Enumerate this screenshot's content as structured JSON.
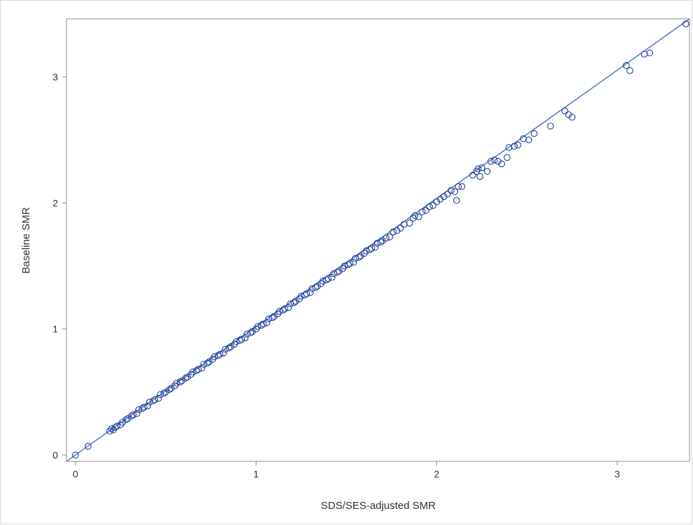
{
  "chart_data": {
    "type": "scatter",
    "title": "",
    "xlabel": "SDS/SES-adjusted SMR",
    "ylabel": "Baseline SMR",
    "xlim": [
      -0.05,
      3.4
    ],
    "ylim": [
      -0.05,
      3.46
    ],
    "x_ticks": [
      "0",
      "1",
      "2",
      "3"
    ],
    "y_ticks": [
      "0",
      "1",
      "2",
      "3"
    ],
    "grid": false,
    "legend": "none",
    "marker": "open-circle",
    "marker_color": "#1f3f99",
    "fit_line_color": "#5b7ec0",
    "fit_line": {
      "x": [
        -0.05,
        3.4
      ],
      "y": [
        -0.05,
        3.46
      ]
    },
    "points": [
      [
        0.0,
        0.0
      ],
      [
        0.07,
        0.07
      ],
      [
        0.19,
        0.19
      ],
      [
        0.2,
        0.21
      ],
      [
        0.21,
        0.2
      ],
      [
        0.22,
        0.22
      ],
      [
        0.23,
        0.23
      ],
      [
        0.25,
        0.24
      ],
      [
        0.26,
        0.26
      ],
      [
        0.28,
        0.28
      ],
      [
        0.29,
        0.29
      ],
      [
        0.31,
        0.31
      ],
      [
        0.32,
        0.32
      ],
      [
        0.34,
        0.33
      ],
      [
        0.35,
        0.36
      ],
      [
        0.37,
        0.37
      ],
      [
        0.38,
        0.38
      ],
      [
        0.4,
        0.39
      ],
      [
        0.41,
        0.42
      ],
      [
        0.43,
        0.43
      ],
      [
        0.44,
        0.44
      ],
      [
        0.46,
        0.45
      ],
      [
        0.47,
        0.48
      ],
      [
        0.49,
        0.49
      ],
      [
        0.5,
        0.5
      ],
      [
        0.52,
        0.52
      ],
      [
        0.53,
        0.53
      ],
      [
        0.55,
        0.55
      ],
      [
        0.56,
        0.57
      ],
      [
        0.58,
        0.58
      ],
      [
        0.59,
        0.59
      ],
      [
        0.61,
        0.61
      ],
      [
        0.62,
        0.62
      ],
      [
        0.64,
        0.64
      ],
      [
        0.65,
        0.66
      ],
      [
        0.67,
        0.67
      ],
      [
        0.68,
        0.68
      ],
      [
        0.7,
        0.69
      ],
      [
        0.71,
        0.72
      ],
      [
        0.73,
        0.73
      ],
      [
        0.74,
        0.74
      ],
      [
        0.76,
        0.76
      ],
      [
        0.77,
        0.78
      ],
      [
        0.79,
        0.79
      ],
      [
        0.8,
        0.8
      ],
      [
        0.82,
        0.81
      ],
      [
        0.83,
        0.84
      ],
      [
        0.85,
        0.85
      ],
      [
        0.86,
        0.86
      ],
      [
        0.88,
        0.88
      ],
      [
        0.89,
        0.9
      ],
      [
        0.91,
        0.91
      ],
      [
        0.92,
        0.92
      ],
      [
        0.94,
        0.93
      ],
      [
        0.95,
        0.96
      ],
      [
        0.97,
        0.97
      ],
      [
        0.98,
        0.98
      ],
      [
        1.0,
        1.0
      ],
      [
        1.01,
        1.02
      ],
      [
        1.03,
        1.03
      ],
      [
        1.04,
        1.04
      ],
      [
        1.06,
        1.05
      ],
      [
        1.07,
        1.08
      ],
      [
        1.09,
        1.09
      ],
      [
        1.1,
        1.1
      ],
      [
        1.12,
        1.12
      ],
      [
        1.13,
        1.14
      ],
      [
        1.15,
        1.15
      ],
      [
        1.16,
        1.16
      ],
      [
        1.18,
        1.17
      ],
      [
        1.19,
        1.2
      ],
      [
        1.21,
        1.21
      ],
      [
        1.22,
        1.22
      ],
      [
        1.24,
        1.24
      ],
      [
        1.25,
        1.26
      ],
      [
        1.27,
        1.27
      ],
      [
        1.28,
        1.28
      ],
      [
        1.3,
        1.29
      ],
      [
        1.31,
        1.32
      ],
      [
        1.33,
        1.33
      ],
      [
        1.34,
        1.34
      ],
      [
        1.36,
        1.36
      ],
      [
        1.37,
        1.38
      ],
      [
        1.39,
        1.39
      ],
      [
        1.4,
        1.4
      ],
      [
        1.42,
        1.41
      ],
      [
        1.43,
        1.44
      ],
      [
        1.45,
        1.45
      ],
      [
        1.46,
        1.46
      ],
      [
        1.48,
        1.48
      ],
      [
        1.49,
        1.5
      ],
      [
        1.51,
        1.51
      ],
      [
        1.52,
        1.52
      ],
      [
        1.54,
        1.53
      ],
      [
        1.55,
        1.56
      ],
      [
        1.57,
        1.57
      ],
      [
        1.58,
        1.58
      ],
      [
        1.6,
        1.6
      ],
      [
        1.61,
        1.62
      ],
      [
        1.63,
        1.63
      ],
      [
        1.64,
        1.64
      ],
      [
        1.66,
        1.65
      ],
      [
        1.67,
        1.68
      ],
      [
        1.69,
        1.69
      ],
      [
        1.7,
        1.7
      ],
      [
        1.72,
        1.72
      ],
      [
        1.74,
        1.73
      ],
      [
        1.76,
        1.77
      ],
      [
        1.78,
        1.78
      ],
      [
        1.8,
        1.8
      ],
      [
        1.82,
        1.83
      ],
      [
        1.85,
        1.84
      ],
      [
        1.87,
        1.88
      ],
      [
        1.88,
        1.9
      ],
      [
        1.9,
        1.89
      ],
      [
        1.92,
        1.93
      ],
      [
        1.94,
        1.94
      ],
      [
        1.96,
        1.97
      ],
      [
        1.98,
        1.98
      ],
      [
        2.0,
        2.01
      ],
      [
        2.02,
        2.03
      ],
      [
        2.04,
        2.05
      ],
      [
        2.06,
        2.07
      ],
      [
        2.08,
        2.1
      ],
      [
        2.1,
        2.09
      ],
      [
        2.11,
        2.02
      ],
      [
        2.12,
        2.13
      ],
      [
        2.14,
        2.13
      ],
      [
        2.2,
        2.22
      ],
      [
        2.22,
        2.25
      ],
      [
        2.23,
        2.27
      ],
      [
        2.24,
        2.21
      ],
      [
        2.25,
        2.28
      ],
      [
        2.28,
        2.25
      ],
      [
        2.3,
        2.33
      ],
      [
        2.32,
        2.34
      ],
      [
        2.34,
        2.33
      ],
      [
        2.36,
        2.31
      ],
      [
        2.39,
        2.36
      ],
      [
        2.4,
        2.44
      ],
      [
        2.43,
        2.45
      ],
      [
        2.45,
        2.46
      ],
      [
        2.48,
        2.51
      ],
      [
        2.51,
        2.5
      ],
      [
        2.54,
        2.55
      ],
      [
        2.63,
        2.61
      ],
      [
        2.71,
        2.73
      ],
      [
        2.73,
        2.7
      ],
      [
        2.75,
        2.68
      ],
      [
        3.05,
        3.09
      ],
      [
        3.07,
        3.05
      ],
      [
        3.15,
        3.18
      ],
      [
        3.18,
        3.19
      ],
      [
        3.38,
        3.42
      ]
    ]
  }
}
